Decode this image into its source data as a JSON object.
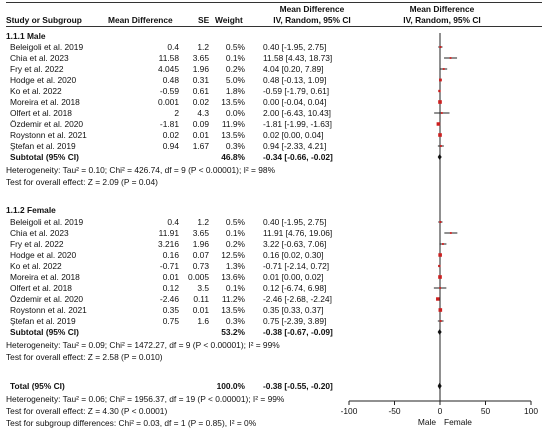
{
  "header": {
    "study": "Study or Subgroup",
    "md": "Mean Difference",
    "se": "SE",
    "weight": "Weight",
    "md_top": "Mean Difference",
    "md_method": "IV, Random, 95% CI",
    "plot_top": "Mean Difference",
    "plot_method": "IV, Random, 95% CI"
  },
  "groups": [
    {
      "title": "1.1.1 Male",
      "rows": [
        {
          "study": "Beleigoli et al. 2019",
          "md": "0.4",
          "se": "1.2",
          "weight": "0.5%",
          "ci": "0.40 [-1.95, 2.75]"
        },
        {
          "study": "Chia et al. 2023",
          "md": "11.58",
          "se": "3.65",
          "weight": "0.1%",
          "ci": "11.58 [4.43, 18.73]"
        },
        {
          "study": "Fry et al. 2022",
          "md": "4.045",
          "se": "1.96",
          "weight": "0.2%",
          "ci": "4.04 [0.20, 7.89]"
        },
        {
          "study": "Hodge et al. 2020",
          "md": "0.48",
          "se": "0.31",
          "weight": "5.0%",
          "ci": "0.48 [-0.13, 1.09]"
        },
        {
          "study": "Ko et al. 2022",
          "md": "-0.59",
          "se": "0.61",
          "weight": "1.8%",
          "ci": "-0.59 [-1.79, 0.61]"
        },
        {
          "study": "Moreira et al. 2018",
          "md": "0.001",
          "se": "0.02",
          "weight": "13.5%",
          "ci": "0.00 [-0.04, 0.04]"
        },
        {
          "study": "Olfert et al. 2018",
          "md": "2",
          "se": "4.3",
          "weight": "0.0%",
          "ci": "2.00 [-6.43, 10.43]"
        },
        {
          "study": "Özdemir et al. 2020",
          "md": "-1.81",
          "se": "0.09",
          "weight": "11.9%",
          "ci": "-1.81 [-1.99, -1.63]"
        },
        {
          "study": "Roystonn et al. 2021",
          "md": "0.02",
          "se": "0.01",
          "weight": "13.5%",
          "ci": "0.02 [0.00, 0.04]"
        },
        {
          "study": "Ştefan et al. 2019",
          "md": "0.94",
          "se": "1.67",
          "weight": "0.3%",
          "ci": "0.94 [-2.33, 4.21]"
        }
      ],
      "subtotal": {
        "label": "Subtotal (95% CI)",
        "weight": "46.8%",
        "ci": "-0.34 [-0.66, -0.02]"
      },
      "heterogeneity": "Heterogeneity: Tau² = 0.10; Chi² = 426.74, df = 9 (P < 0.00001); I² = 98%",
      "overall_effect": "Test for overall effect: Z = 2.09 (P = 0.04)"
    },
    {
      "title": "1.1.2 Female",
      "rows": [
        {
          "study": "Beleigoli et al. 2019",
          "md": "0.4",
          "se": "1.2",
          "weight": "0.5%",
          "ci": "0.40 [-1.95, 2.75]"
        },
        {
          "study": "Chia et al. 2023",
          "md": "11.91",
          "se": "3.65",
          "weight": "0.1%",
          "ci": "11.91 [4.76, 19.06]"
        },
        {
          "study": "Fry et al. 2022",
          "md": "3.216",
          "se": "1.96",
          "weight": "0.2%",
          "ci": "3.22 [-0.63, 7.06]"
        },
        {
          "study": "Hodge et al. 2020",
          "md": "0.16",
          "se": "0.07",
          "weight": "12.5%",
          "ci": "0.16 [0.02, 0.30]"
        },
        {
          "study": "Ko et al. 2022",
          "md": "-0.71",
          "se": "0.73",
          "weight": "1.3%",
          "ci": "-0.71 [-2.14, 0.72]"
        },
        {
          "study": "Moreira et al. 2018",
          "md": "0.01",
          "se": "0.005",
          "weight": "13.6%",
          "ci": "0.01 [0.00, 0.02]"
        },
        {
          "study": "Olfert et al. 2018",
          "md": "0.12",
          "se": "3.5",
          "weight": "0.1%",
          "ci": "0.12 [-6.74, 6.98]"
        },
        {
          "study": "Özdemir et al. 2020",
          "md": "-2.46",
          "se": "0.11",
          "weight": "11.2%",
          "ci": "-2.46 [-2.68, -2.24]"
        },
        {
          "study": "Roystonn et al. 2021",
          "md": "0.35",
          "se": "0.01",
          "weight": "13.5%",
          "ci": "0.35 [0.33, 0.37]"
        },
        {
          "study": "Ştefan et al. 2019",
          "md": "0.75",
          "se": "1.6",
          "weight": "0.3%",
          "ci": "0.75 [-2.39, 3.89]"
        }
      ],
      "subtotal": {
        "label": "Subtotal (95% CI)",
        "weight": "53.2%",
        "ci": "-0.38 [-0.67, -0.09]"
      },
      "heterogeneity": "Heterogeneity: Tau² = 0.09; Chi² = 1472.27, df = 9 (P < 0.00001); I² = 99%",
      "overall_effect": "Test for overall effect: Z = 2.58 (P = 0.010)"
    }
  ],
  "total": {
    "label": "Total (95% CI)",
    "weight": "100.0%",
    "ci": "-0.38 [-0.55, -0.20]",
    "heterogeneity": "Heterogeneity: Tau² = 0.06; Chi² = 1956.37, df = 19 (P < 0.00001); I² = 99%",
    "overall_effect": "Test for overall effect: Z = 4.30 (P < 0.0001)",
    "subgroup_diff": "Test for subgroup differences: Chi² = 0.03, df = 1 (P = 0.85), I² = 0%"
  },
  "chart_data": {
    "type": "forest",
    "xlim": [
      -100,
      100
    ],
    "ticks": [
      -100,
      -50,
      0,
      50,
      100
    ],
    "tick_labels": [
      "-100",
      "-50",
      "0",
      "50",
      "100"
    ],
    "favours_left": "Male",
    "favours_right": "Female",
    "square_color": "#cc1f1f",
    "ci_color": "#222222",
    "diamond_color": "#111111",
    "groups": [
      {
        "studies": [
          {
            "est": 0.4,
            "lo": -1.95,
            "hi": 2.75,
            "weight": 0.5
          },
          {
            "est": 11.58,
            "lo": 4.43,
            "hi": 18.73,
            "weight": 0.1
          },
          {
            "est": 4.04,
            "lo": 0.2,
            "hi": 7.89,
            "weight": 0.2
          },
          {
            "est": 0.48,
            "lo": -0.13,
            "hi": 1.09,
            "weight": 5.0
          },
          {
            "est": -0.59,
            "lo": -1.79,
            "hi": 0.61,
            "weight": 1.8
          },
          {
            "est": 0.0,
            "lo": -0.04,
            "hi": 0.04,
            "weight": 13.5
          },
          {
            "est": 2.0,
            "lo": -6.43,
            "hi": 10.43,
            "weight": 0.0
          },
          {
            "est": -1.81,
            "lo": -1.99,
            "hi": -1.63,
            "weight": 11.9
          },
          {
            "est": 0.02,
            "lo": 0.0,
            "hi": 0.04,
            "weight": 13.5
          },
          {
            "est": 0.94,
            "lo": -2.33,
            "hi": 4.21,
            "weight": 0.3
          }
        ],
        "subtotal": {
          "est": -0.34,
          "lo": -0.66,
          "hi": -0.02
        }
      },
      {
        "studies": [
          {
            "est": 0.4,
            "lo": -1.95,
            "hi": 2.75,
            "weight": 0.5
          },
          {
            "est": 11.91,
            "lo": 4.76,
            "hi": 19.06,
            "weight": 0.1
          },
          {
            "est": 3.22,
            "lo": -0.63,
            "hi": 7.06,
            "weight": 0.2
          },
          {
            "est": 0.16,
            "lo": 0.02,
            "hi": 0.3,
            "weight": 12.5
          },
          {
            "est": -0.71,
            "lo": -2.14,
            "hi": 0.72,
            "weight": 1.3
          },
          {
            "est": 0.01,
            "lo": 0.0,
            "hi": 0.02,
            "weight": 13.6
          },
          {
            "est": 0.12,
            "lo": -6.74,
            "hi": 6.98,
            "weight": 0.1
          },
          {
            "est": -2.46,
            "lo": -2.68,
            "hi": -2.24,
            "weight": 11.2
          },
          {
            "est": 0.35,
            "lo": 0.33,
            "hi": 0.37,
            "weight": 13.5
          },
          {
            "est": 0.75,
            "lo": -2.39,
            "hi": 3.89,
            "weight": 0.3
          }
        ],
        "subtotal": {
          "est": -0.38,
          "lo": -0.67,
          "hi": -0.09
        }
      }
    ],
    "total": {
      "est": -0.38,
      "lo": -0.55,
      "hi": -0.2
    }
  }
}
